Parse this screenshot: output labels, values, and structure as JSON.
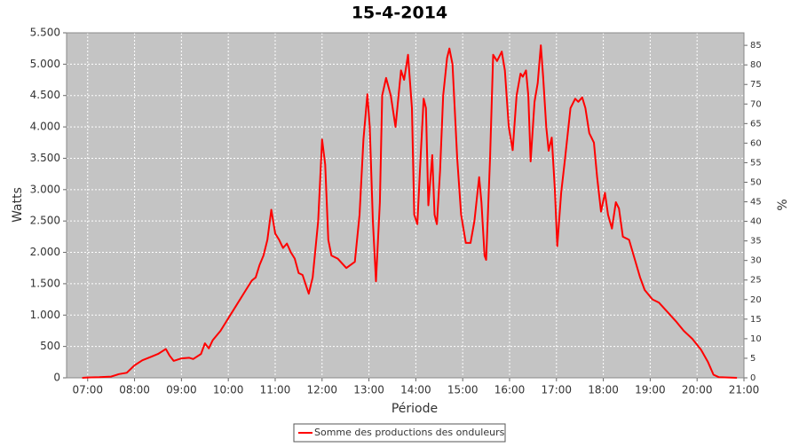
{
  "chart_data": {
    "type": "line",
    "title": "15-4-2014",
    "xlabel": "Période",
    "ylabel": "Watts",
    "y2label": "%",
    "x": [
      "06:53",
      "07:00",
      "07:15",
      "07:30",
      "07:40",
      "07:50",
      "08:00",
      "08:10",
      "08:20",
      "08:30",
      "08:35",
      "08:40",
      "08:45",
      "08:50",
      "09:00",
      "09:10",
      "09:15",
      "09:25",
      "09:30",
      "09:35",
      "09:40",
      "09:50",
      "10:00",
      "10:10",
      "10:20",
      "10:30",
      "10:35",
      "10:40",
      "10:45",
      "10:50",
      "10:55",
      "11:00",
      "11:05",
      "11:10",
      "11:15",
      "11:20",
      "11:25",
      "11:30",
      "11:35",
      "11:40",
      "11:43",
      "11:48",
      "11:55",
      "12:00",
      "12:04",
      "12:08",
      "12:12",
      "12:20",
      "12:31",
      "12:42",
      "12:48",
      "12:53",
      "12:58",
      "13:01",
      "13:05",
      "13:09",
      "13:14",
      "13:17",
      "13:22",
      "13:28",
      "13:34",
      "13:41",
      "13:45",
      "13:50",
      "13:55",
      "13:58",
      "14:02",
      "14:06",
      "14:10",
      "14:13",
      "14:16",
      "14:21",
      "14:24",
      "14:27",
      "14:31",
      "14:35",
      "14:40",
      "14:43",
      "14:47",
      "14:53",
      "14:58",
      "15:04",
      "15:10",
      "15:15",
      "15:21",
      "15:24",
      "15:28",
      "15:30",
      "15:35",
      "15:39",
      "15:44",
      "15:50",
      "15:54",
      "15:59",
      "16:04",
      "16:09",
      "16:14",
      "16:17",
      "16:21",
      "16:24",
      "16:27",
      "16:32",
      "16:36",
      "16:40",
      "16:43",
      "16:47",
      "16:50",
      "16:54",
      "16:58",
      "17:01",
      "17:06",
      "17:11",
      "17:18",
      "17:24",
      "17:28",
      "17:33",
      "17:37",
      "17:42",
      "17:48",
      "17:52",
      "17:57",
      "18:02",
      "18:06",
      "18:11",
      "18:16",
      "18:20",
      "18:25",
      "18:33",
      "18:40",
      "18:47",
      "18:53",
      "19:03",
      "19:11",
      "19:22",
      "19:33",
      "19:43",
      "19:54",
      "20:05",
      "20:14",
      "20:21",
      "20:28",
      "20:51"
    ],
    "series": [
      {
        "name": "Somme des productions des onduleurs",
        "color": "#ff0000",
        "values": [
          0,
          5,
          10,
          20,
          60,
          80,
          200,
          280,
          330,
          380,
          420,
          460,
          350,
          270,
          310,
          320,
          300,
          380,
          550,
          470,
          600,
          750,
          950,
          1150,
          1350,
          1550,
          1600,
          1800,
          1950,
          2200,
          2680,
          2300,
          2200,
          2070,
          2140,
          2000,
          1900,
          1670,
          1640,
          1450,
          1340,
          1600,
          2500,
          3800,
          3400,
          2200,
          1950,
          1900,
          1750,
          1850,
          2600,
          3800,
          4520,
          4000,
          2500,
          1540,
          2800,
          4500,
          4780,
          4500,
          4000,
          4900,
          4750,
          5150,
          4300,
          2600,
          2450,
          3500,
          4450,
          4300,
          2750,
          3550,
          2600,
          2450,
          3300,
          4500,
          5100,
          5250,
          5000,
          3500,
          2600,
          2150,
          2150,
          2500,
          3200,
          2800,
          1950,
          1880,
          3500,
          5150,
          5050,
          5200,
          4900,
          4000,
          3630,
          4500,
          4850,
          4800,
          4900,
          4500,
          3450,
          4400,
          4700,
          5300,
          4800,
          4000,
          3620,
          3830,
          3000,
          2100,
          2950,
          3500,
          4300,
          4450,
          4400,
          4470,
          4300,
          3900,
          3750,
          3200,
          2650,
          2950,
          2600,
          2380,
          2800,
          2700,
          2250,
          2200,
          1900,
          1600,
          1400,
          1250,
          1200,
          1050,
          900,
          750,
          620,
          450,
          250,
          50,
          10,
          0
        ]
      }
    ],
    "xlim": [
      "06:33",
      "21:00"
    ],
    "xticks": [
      "07:00",
      "08:00",
      "09:00",
      "10:00",
      "11:00",
      "12:00",
      "13:00",
      "14:00",
      "15:00",
      "16:00",
      "17:00",
      "18:00",
      "19:00",
      "20:00",
      "21:00"
    ],
    "ylim": [
      0,
      5500
    ],
    "yticks": [
      0,
      500,
      {
        "value": 1000,
        "label": "1.000"
      },
      {
        "value": 1500,
        "label": "1.500"
      },
      {
        "value": 2000,
        "label": "2.000"
      },
      {
        "value": 2500,
        "label": "2.500"
      },
      {
        "value": 3000,
        "label": "3.000"
      },
      {
        "value": 3500,
        "label": "3.500"
      },
      {
        "value": 4000,
        "label": "4.000"
      },
      {
        "value": 4500,
        "label": "4.500"
      },
      {
        "value": 5000,
        "label": "5.000"
      },
      {
        "value": 5500,
        "label": "5.500"
      }
    ],
    "y2lim": [
      0,
      88.2
    ],
    "y2ticks": [
      0,
      5,
      10,
      15,
      20,
      25,
      30,
      35,
      40,
      45,
      50,
      55,
      60,
      65,
      70,
      75,
      80,
      85
    ],
    "grid": true,
    "legend": "bottom"
  }
}
